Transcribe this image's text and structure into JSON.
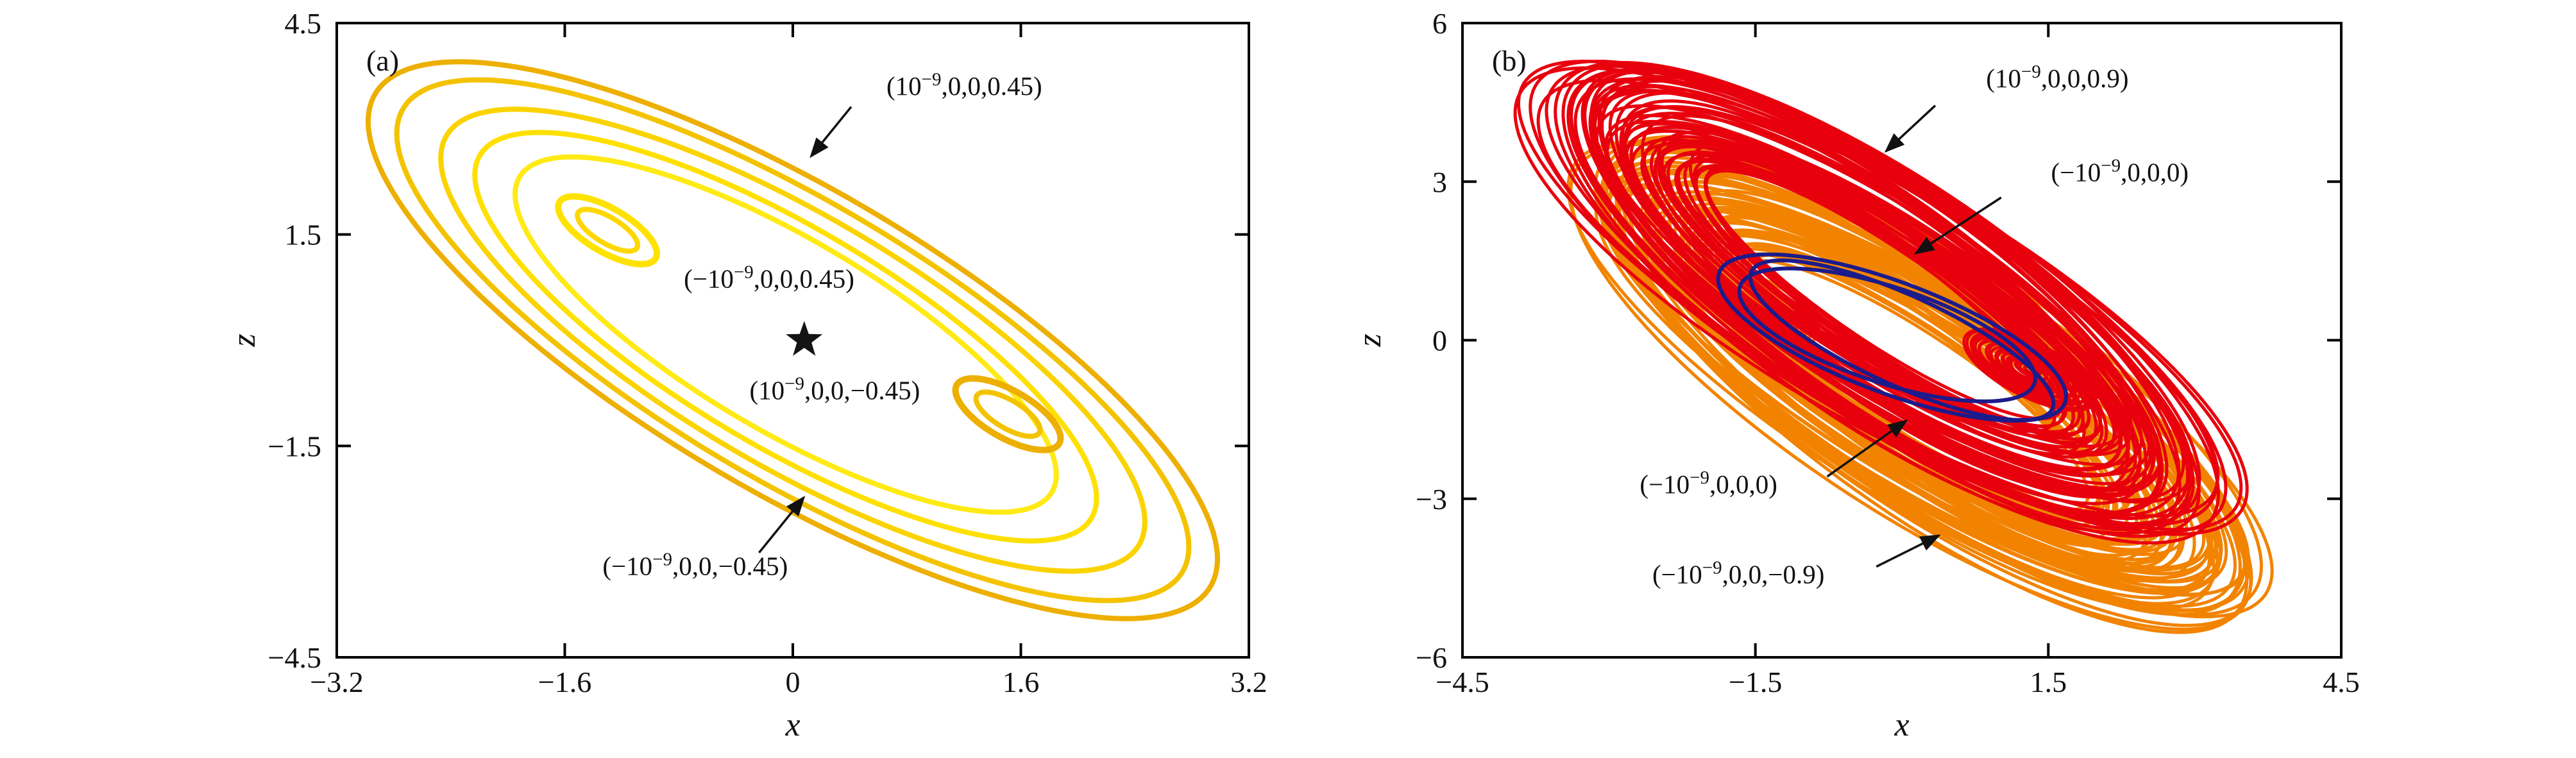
{
  "chart_data": [
    {
      "id": "a",
      "type": "line",
      "panel_label": "(a)",
      "xlabel": "x",
      "ylabel": "z",
      "xlim": [
        -3.2,
        3.2
      ],
      "ylim": [
        -4.5,
        4.5
      ],
      "grid": false,
      "legend": "none",
      "xticks": {
        "values": [
          -3.2,
          -1.6,
          0,
          1.6,
          3.2
        ],
        "labels": [
          "−3.2",
          "−1.6",
          "0",
          "1.6",
          "3.2"
        ]
      },
      "yticks": {
        "values": [
          4.5,
          1.5,
          -1.5,
          -4.5
        ],
        "labels": [
          "4.5",
          "1.5",
          "−1.5",
          "−4.5"
        ]
      },
      "series": [
        {
          "name": "torus-orbit-1",
          "type": "ellipse",
          "color": "#EDAF00",
          "width": 8,
          "cx": 0,
          "cy": 0,
          "a": 4.7,
          "b": 1.55,
          "rot": -55
        },
        {
          "name": "torus-orbit-2",
          "type": "ellipse",
          "color": "#F4C300",
          "width": 8,
          "cx": 0,
          "cy": 0,
          "a": 4.4,
          "b": 1.42,
          "rot": -55
        },
        {
          "name": "torus-orbit-3",
          "type": "ellipse",
          "color": "#FAD300",
          "width": 8,
          "cx": 0,
          "cy": 0,
          "a": 3.9,
          "b": 1.28,
          "rot": -55
        },
        {
          "name": "torus-orbit-4",
          "type": "ellipse",
          "color": "#FFE000",
          "width": 8,
          "cx": -0.05,
          "cy": 0.05,
          "a": 3.45,
          "b": 1.12,
          "rot": -55
        },
        {
          "name": "torus-orbit-5",
          "type": "ellipse",
          "color": "#FFEA15",
          "width": 8,
          "cx": -0.05,
          "cy": 0.08,
          "a": 3.0,
          "b": 0.98,
          "rot": -55
        },
        {
          "name": "small-loop-left-outer",
          "type": "ellipse",
          "color": "#FFE200",
          "width": 10,
          "cx": -1.3,
          "cy": 1.56,
          "a": 0.55,
          "b": 0.22,
          "rot": -58
        },
        {
          "name": "small-loop-left-inner",
          "type": "ellipse",
          "color": "#FFD700",
          "width": 8,
          "cx": -1.3,
          "cy": 1.56,
          "a": 0.34,
          "b": 0.13,
          "rot": -58
        },
        {
          "name": "small-loop-right-outer",
          "type": "ellipse",
          "color": "#EDAF00",
          "width": 10,
          "cx": 1.51,
          "cy": -1.05,
          "a": 0.58,
          "b": 0.24,
          "rot": -58
        },
        {
          "name": "small-loop-right-inner",
          "type": "ellipse",
          "color": "#F4C300",
          "width": 8,
          "cx": 1.51,
          "cy": -1.05,
          "a": 0.36,
          "b": 0.14,
          "rot": -58
        }
      ],
      "marker": {
        "type": "star",
        "x": 0.08,
        "y": 0,
        "color": "#141414"
      },
      "annotations": [
        {
          "pre": "(10",
          "sup": "−9",
          "post": ",0,0,0.45)",
          "tx": 0.688,
          "ty": 0.113,
          "arrow": {
            "x1": 0.564,
            "y1": 0.132,
            "x2": 0.52,
            "y2": 0.21
          }
        },
        {
          "pre": "(−10",
          "sup": "−9",
          "post": ",0,0,0.45)",
          "tx": 0.474,
          "ty": 0.417,
          "arrow": null
        },
        {
          "pre": "(10",
          "sup": "−9",
          "post": ",0,0,−0.45)",
          "tx": 0.546,
          "ty": 0.593,
          "arrow": null
        },
        {
          "pre": "(−10",
          "sup": "−9",
          "post": ",0,0,−0.45)",
          "tx": 0.393,
          "ty": 0.87,
          "arrow": {
            "x1": 0.463,
            "y1": 0.835,
            "x2": 0.512,
            "y2": 0.748
          }
        }
      ]
    },
    {
      "id": "b",
      "type": "line",
      "panel_label": "(b)",
      "xlabel": "x",
      "ylabel": "z",
      "xlim": [
        -4.5,
        4.5
      ],
      "ylim": [
        -6,
        6
      ],
      "grid": false,
      "legend": "none",
      "xticks": {
        "values": [
          -4.5,
          -1.5,
          1.5,
          4.5
        ],
        "labels": [
          "−4.5",
          "−1.5",
          "1.5",
          "4.5"
        ]
      },
      "yticks": {
        "values": [
          6,
          3,
          0,
          -3,
          -6
        ],
        "labels": [
          "6",
          "3",
          "0",
          "−3",
          "−6"
        ]
      },
      "series": [
        {
          "name": "chaotic-attractor-orange",
          "type": "band",
          "color": "#F28300",
          "width": 5,
          "cx": 0.2,
          "cy": -0.8,
          "rot": -54,
          "aMin": 2.9,
          "aMax": 5.5,
          "bMin": 0.7,
          "bMax": 1.75,
          "count": 58,
          "seed": 21
        },
        {
          "name": "chaotic-attractor-orange-scroll",
          "type": "band",
          "color": "#F28300",
          "width": 4.5,
          "cx": -1.55,
          "cy": 0.69,
          "rot": -50,
          "aMin": 0.1,
          "aMax": 0.95,
          "bMin": 0.05,
          "bMax": 0.4,
          "count": 24,
          "seed": 22
        },
        {
          "name": "chaotic-attractor-red",
          "type": "band",
          "color": "#E8000D",
          "width": 5,
          "cx": -0.2,
          "cy": 0.8,
          "rot": -54,
          "aMin": 2.9,
          "aMax": 5.5,
          "bMin": 0.7,
          "bMax": 1.75,
          "count": 58,
          "seed": 11
        },
        {
          "name": "chaotic-attractor-red-scroll",
          "type": "band",
          "color": "#E8000D",
          "width": 4.5,
          "cx": 1.3,
          "cy": -0.55,
          "rot": -50,
          "aMin": 0.1,
          "aMax": 0.95,
          "bMin": 0.05,
          "bMax": 0.4,
          "count": 24,
          "seed": 12
        },
        {
          "name": "limit-cycle-blue-1",
          "type": "ellipse",
          "color": "#1B1B8C",
          "width": 6,
          "cx": -0.1,
          "cy": 0.05,
          "a": 2.2,
          "b": 0.9,
          "rot": -40
        },
        {
          "name": "limit-cycle-blue-2",
          "type": "ellipse",
          "color": "#1B1B8C",
          "width": 6,
          "cx": 0.0,
          "cy": 0.0,
          "a": 2.05,
          "b": 0.7,
          "rot": -44
        },
        {
          "name": "limit-cycle-blue-3",
          "type": "ellipse",
          "color": "#1B1B8C",
          "width": 6,
          "cx": -0.15,
          "cy": 0.1,
          "a": 1.8,
          "b": 0.8,
          "rot": -37
        }
      ],
      "marker": null,
      "annotations": [
        {
          "pre": "(10",
          "sup": "−9",
          "post": ",0,0,0.9)",
          "tx": 0.677,
          "ty": 0.101,
          "arrow": {
            "x1": 0.538,
            "y1": 0.13,
            "x2": 0.482,
            "y2": 0.202
          }
        },
        {
          "pre": "(−10",
          "sup": "−9",
          "post": ",0,0,0)",
          "tx": 0.748,
          "ty": 0.249,
          "arrow": {
            "x1": 0.613,
            "y1": 0.275,
            "x2": 0.516,
            "y2": 0.363
          }
        },
        {
          "pre": "(−10",
          "sup": "−9",
          "post": ",0,0,0)",
          "tx": 0.28,
          "ty": 0.741,
          "arrow": {
            "x1": 0.415,
            "y1": 0.715,
            "x2": 0.505,
            "y2": 0.627
          }
        },
        {
          "pre": "(−10",
          "sup": "−9",
          "post": ",0,0,−0.9)",
          "tx": 0.314,
          "ty": 0.883,
          "arrow": {
            "x1": 0.471,
            "y1": 0.857,
            "x2": 0.542,
            "y2": 0.808
          }
        }
      ]
    }
  ],
  "style": {
    "background": "#ffffff",
    "frame_color": "#000000",
    "annotation_color": "#111111",
    "star_color": "#141414"
  }
}
